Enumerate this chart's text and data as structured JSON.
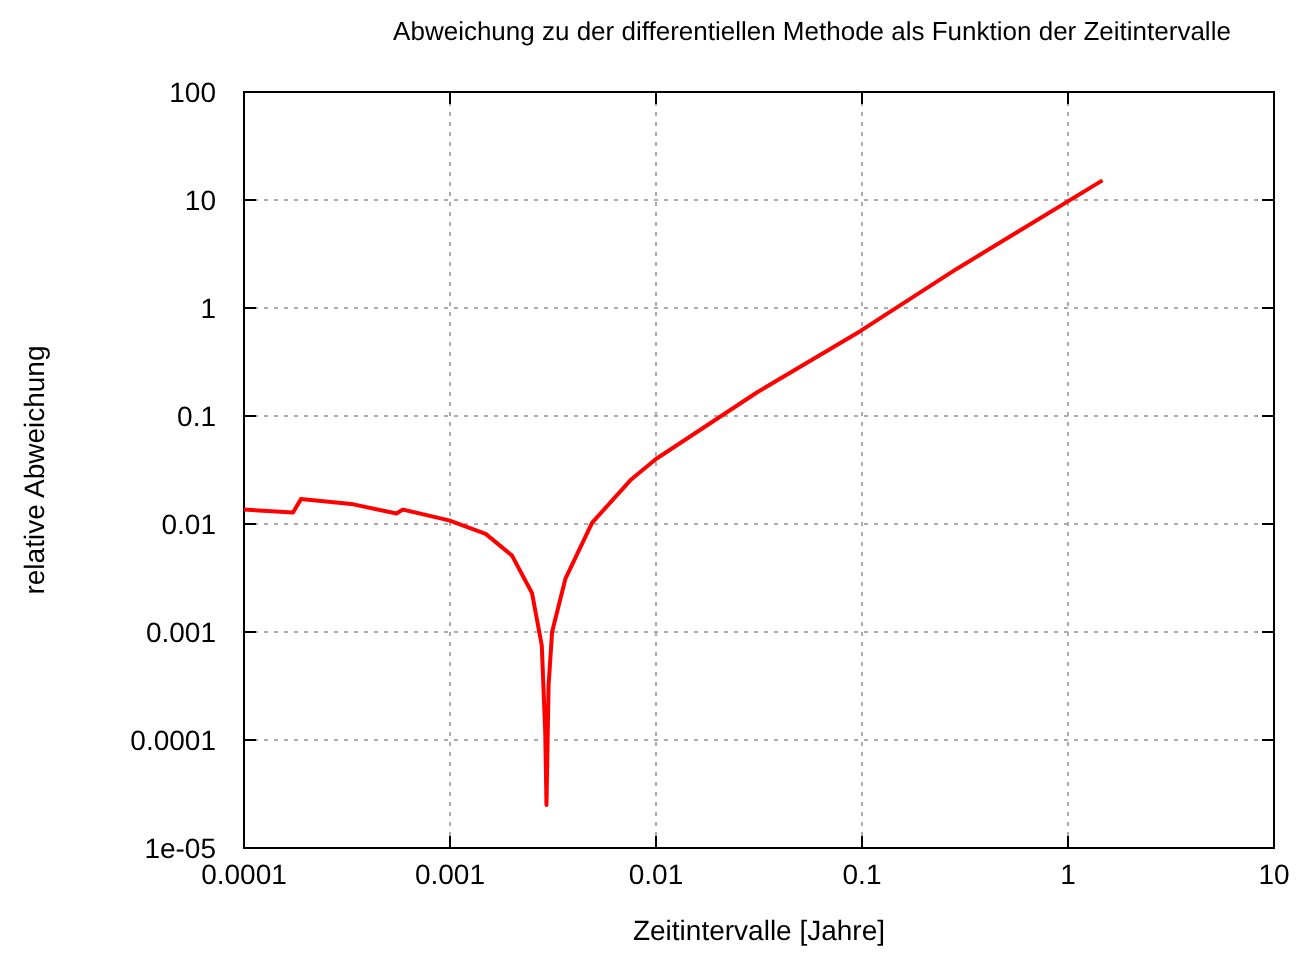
{
  "chart_data": {
    "type": "line",
    "title": "Abweichung zu der differentiellen Methode als Funktion der Zeitintervalle",
    "xlabel": "Zeitintervalle [Jahre]",
    "ylabel": "relative Abweichung",
    "log": "xy",
    "grid": true,
    "marker": "none",
    "line_style": "solid",
    "xlim": [
      0.0001,
      10
    ],
    "xticks": [
      0.0001,
      0.001,
      0.01,
      0.1,
      1,
      10
    ],
    "ylim": [
      1e-05,
      100
    ],
    "yticks": [
      {
        "value": 1e-05,
        "label": "1e-05"
      },
      0.0001,
      0.001,
      0.01,
      0.1,
      1,
      10,
      100
    ],
    "series": [
      {
        "color": "#ff0000",
        "x": [
          0.0001,
          0.000173,
          0.000189,
          0.00034,
          0.00055,
          0.00059,
          0.00099,
          0.00149,
          0.002,
          0.0025,
          0.00279,
          0.0029,
          0.00294,
          0.00301,
          0.00313,
          0.00363,
          0.0049,
          0.0076,
          0.01,
          0.031,
          0.098,
          0.288,
          1.47
        ],
        "values": [
          0.0136,
          0.0128,
          0.017,
          0.0152,
          0.0125,
          0.0136,
          0.0108,
          0.0081,
          0.0051,
          0.0023,
          0.00075,
          0.000117,
          2.5e-05,
          0.00032,
          0.001,
          0.0031,
          0.0103,
          0.026,
          0.04,
          0.166,
          0.61,
          2.3,
          15.2
        ]
      }
    ]
  }
}
